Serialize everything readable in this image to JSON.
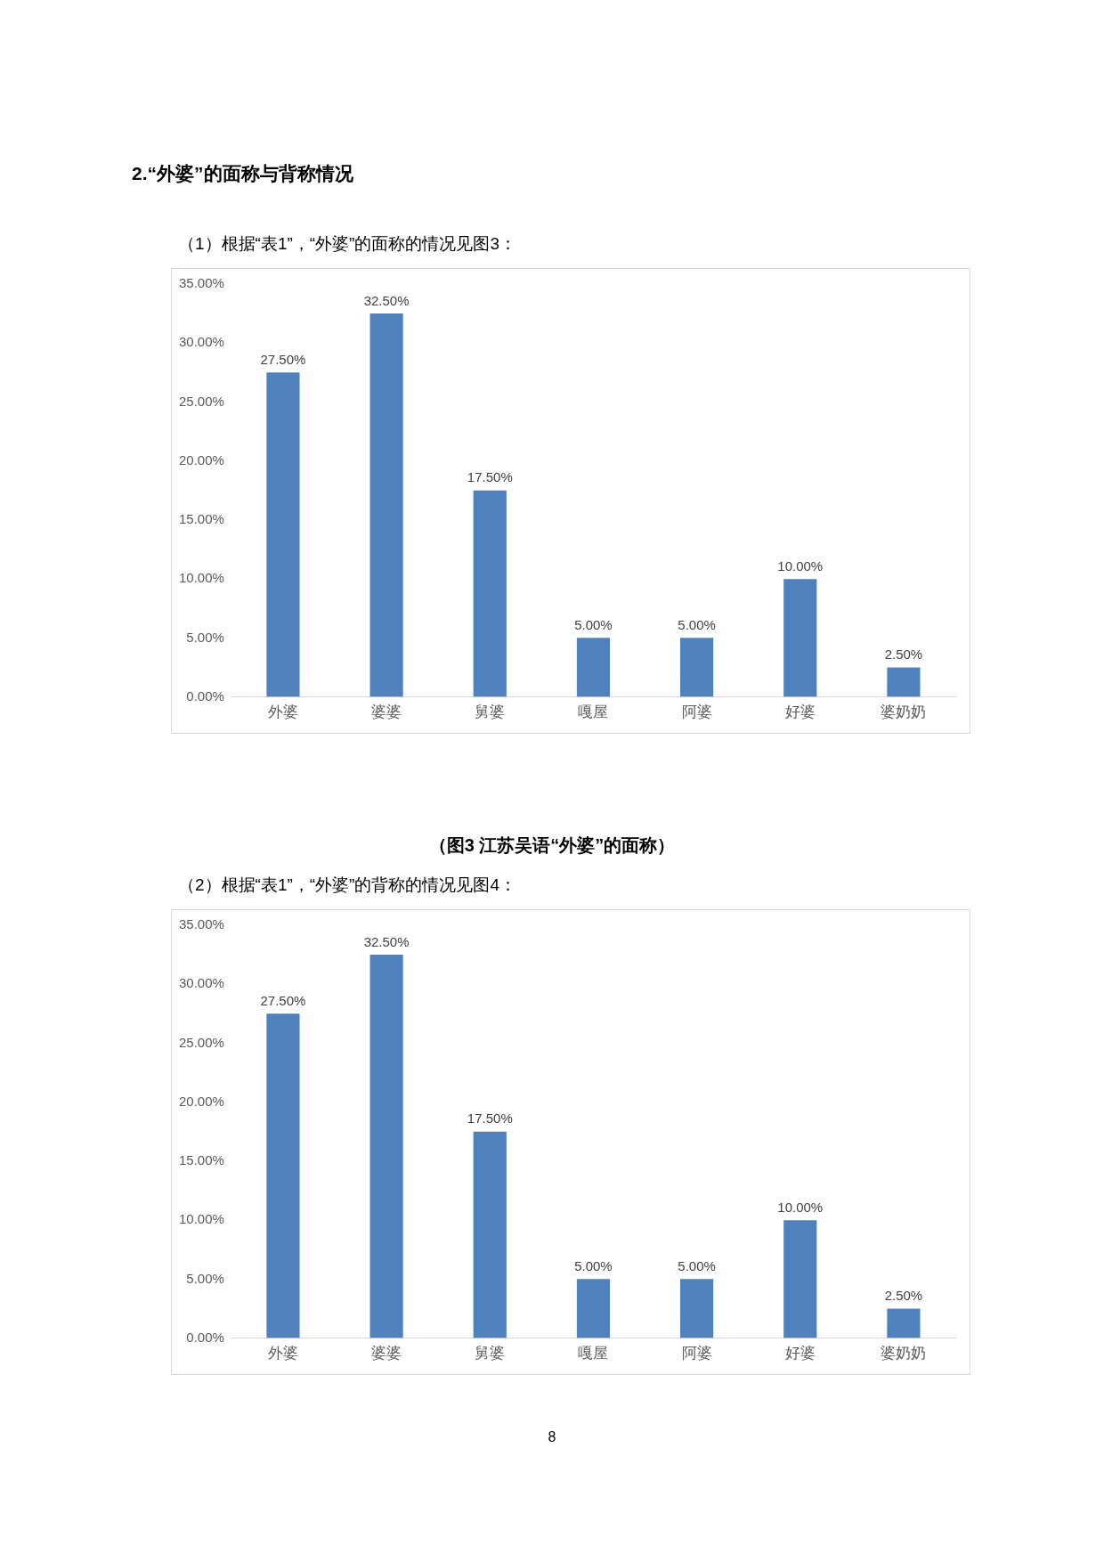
{
  "chart_data": [
    {
      "type": "bar",
      "annotations": [
        "2.“外婆”的面称与背称情况",
        "（1）根据“表1”，“外婆”的面称的情况见图3：",
        "（图3 江苏吴语“外婆”的面称）"
      ],
      "categories": [
        "外婆",
        "婆婆",
        "舅婆",
        "嘎屋",
        "阿婆",
        "好婆",
        "婆奶奶"
      ],
      "values": [
        27.5,
        32.5,
        17.5,
        5,
        5,
        10,
        2.5
      ],
      "color": "#4f81bd",
      "value_labels": [
        "27.50%",
        "32.50%",
        "17.50%",
        "5.00%",
        "5.00%",
        "10.00%",
        "2.50%"
      ],
      "ylim": [
        0,
        35
      ],
      "yticks": [
        {
          "value": 0,
          "label": "0.00%"
        },
        {
          "value": 5,
          "label": "5.00%"
        },
        {
          "value": 10,
          "label": "10.00%"
        },
        {
          "value": 15,
          "label": "15.00%"
        },
        {
          "value": 20,
          "label": "20.00%"
        },
        {
          "value": 25,
          "label": "25.00%"
        },
        {
          "value": 30,
          "label": "30.00%"
        },
        {
          "value": 35,
          "label": "35.00%"
        }
      ],
      "grid": false,
      "legend": false
    },
    {
      "type": "bar",
      "annotations": [
        "（2）根据“表1”，“外婆”的背称的情况见图4：",
        "8"
      ],
      "categories": [
        "外婆",
        "婆婆",
        "舅婆",
        "嘎屋",
        "阿婆",
        "好婆",
        "婆奶奶"
      ],
      "values": [
        27.5,
        32.5,
        17.5,
        5,
        5,
        10,
        2.5
      ],
      "color": "#4f81bd",
      "value_labels": [
        "27.50%",
        "32.50%",
        "17.50%",
        "5.00%",
        "5.00%",
        "10.00%",
        "2.50%"
      ],
      "ylim": [
        0,
        35
      ],
      "yticks": [
        {
          "value": 0,
          "label": "0.00%"
        },
        {
          "value": 5,
          "label": "5.00%"
        },
        {
          "value": 10,
          "label": "10.00%"
        },
        {
          "value": 15,
          "label": "15.00%"
        },
        {
          "value": 20,
          "label": "20.00%"
        },
        {
          "value": 25,
          "label": "25.00%"
        },
        {
          "value": 30,
          "label": "30.00%"
        },
        {
          "value": 35,
          "label": "35.00%"
        }
      ],
      "grid": false,
      "legend": false
    }
  ]
}
